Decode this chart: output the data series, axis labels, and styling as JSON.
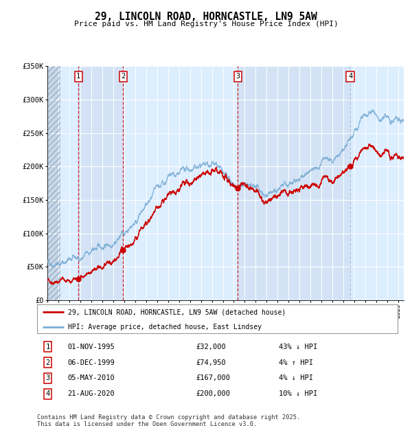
{
  "title": "29, LINCOLN ROAD, HORNCASTLE, LN9 5AW",
  "subtitle": "Price paid vs. HM Land Registry's House Price Index (HPI)",
  "transactions": [
    {
      "num": 1,
      "date_label": "01-NOV-1995",
      "price": 32000,
      "pct": "43%",
      "dir": "↓",
      "date_x": 1995.833
    },
    {
      "num": 2,
      "date_label": "06-DEC-1999",
      "price": 74950,
      "pct": "4%",
      "dir": "↑",
      "date_x": 1999.917
    },
    {
      "num": 3,
      "date_label": "05-MAY-2010",
      "price": 167000,
      "pct": "4%",
      "dir": "↓",
      "date_x": 2010.375
    },
    {
      "num": 4,
      "date_label": "21-AUG-2020",
      "price": 200000,
      "pct": "10%",
      "dir": "↓",
      "date_x": 2020.625
    }
  ],
  "red_line_color": "#cc0000",
  "blue_line_color": "#7aadd4",
  "marker_color": "#cc0000",
  "vline_colors": [
    "#cc0000",
    "#cc0000",
    "#cc0000",
    "#aabbdd"
  ],
  "background_color": "#ddeeff",
  "grid_color": "#ffffff",
  "legend_label_red": "29, LINCOLN ROAD, HORNCASTLE, LN9 5AW (detached house)",
  "legend_label_blue": "HPI: Average price, detached house, East Lindsey",
  "footer": "Contains HM Land Registry data © Crown copyright and database right 2025.\nThis data is licensed under the Open Government Licence v3.0.",
  "ylim": [
    0,
    350000
  ],
  "yticks": [
    0,
    50000,
    100000,
    150000,
    200000,
    250000,
    300000,
    350000
  ],
  "ytick_labels": [
    "£0",
    "£50K",
    "£100K",
    "£150K",
    "£200K",
    "£250K",
    "£300K",
    "£350K"
  ],
  "xmin": 1993.0,
  "xmax": 2025.5
}
